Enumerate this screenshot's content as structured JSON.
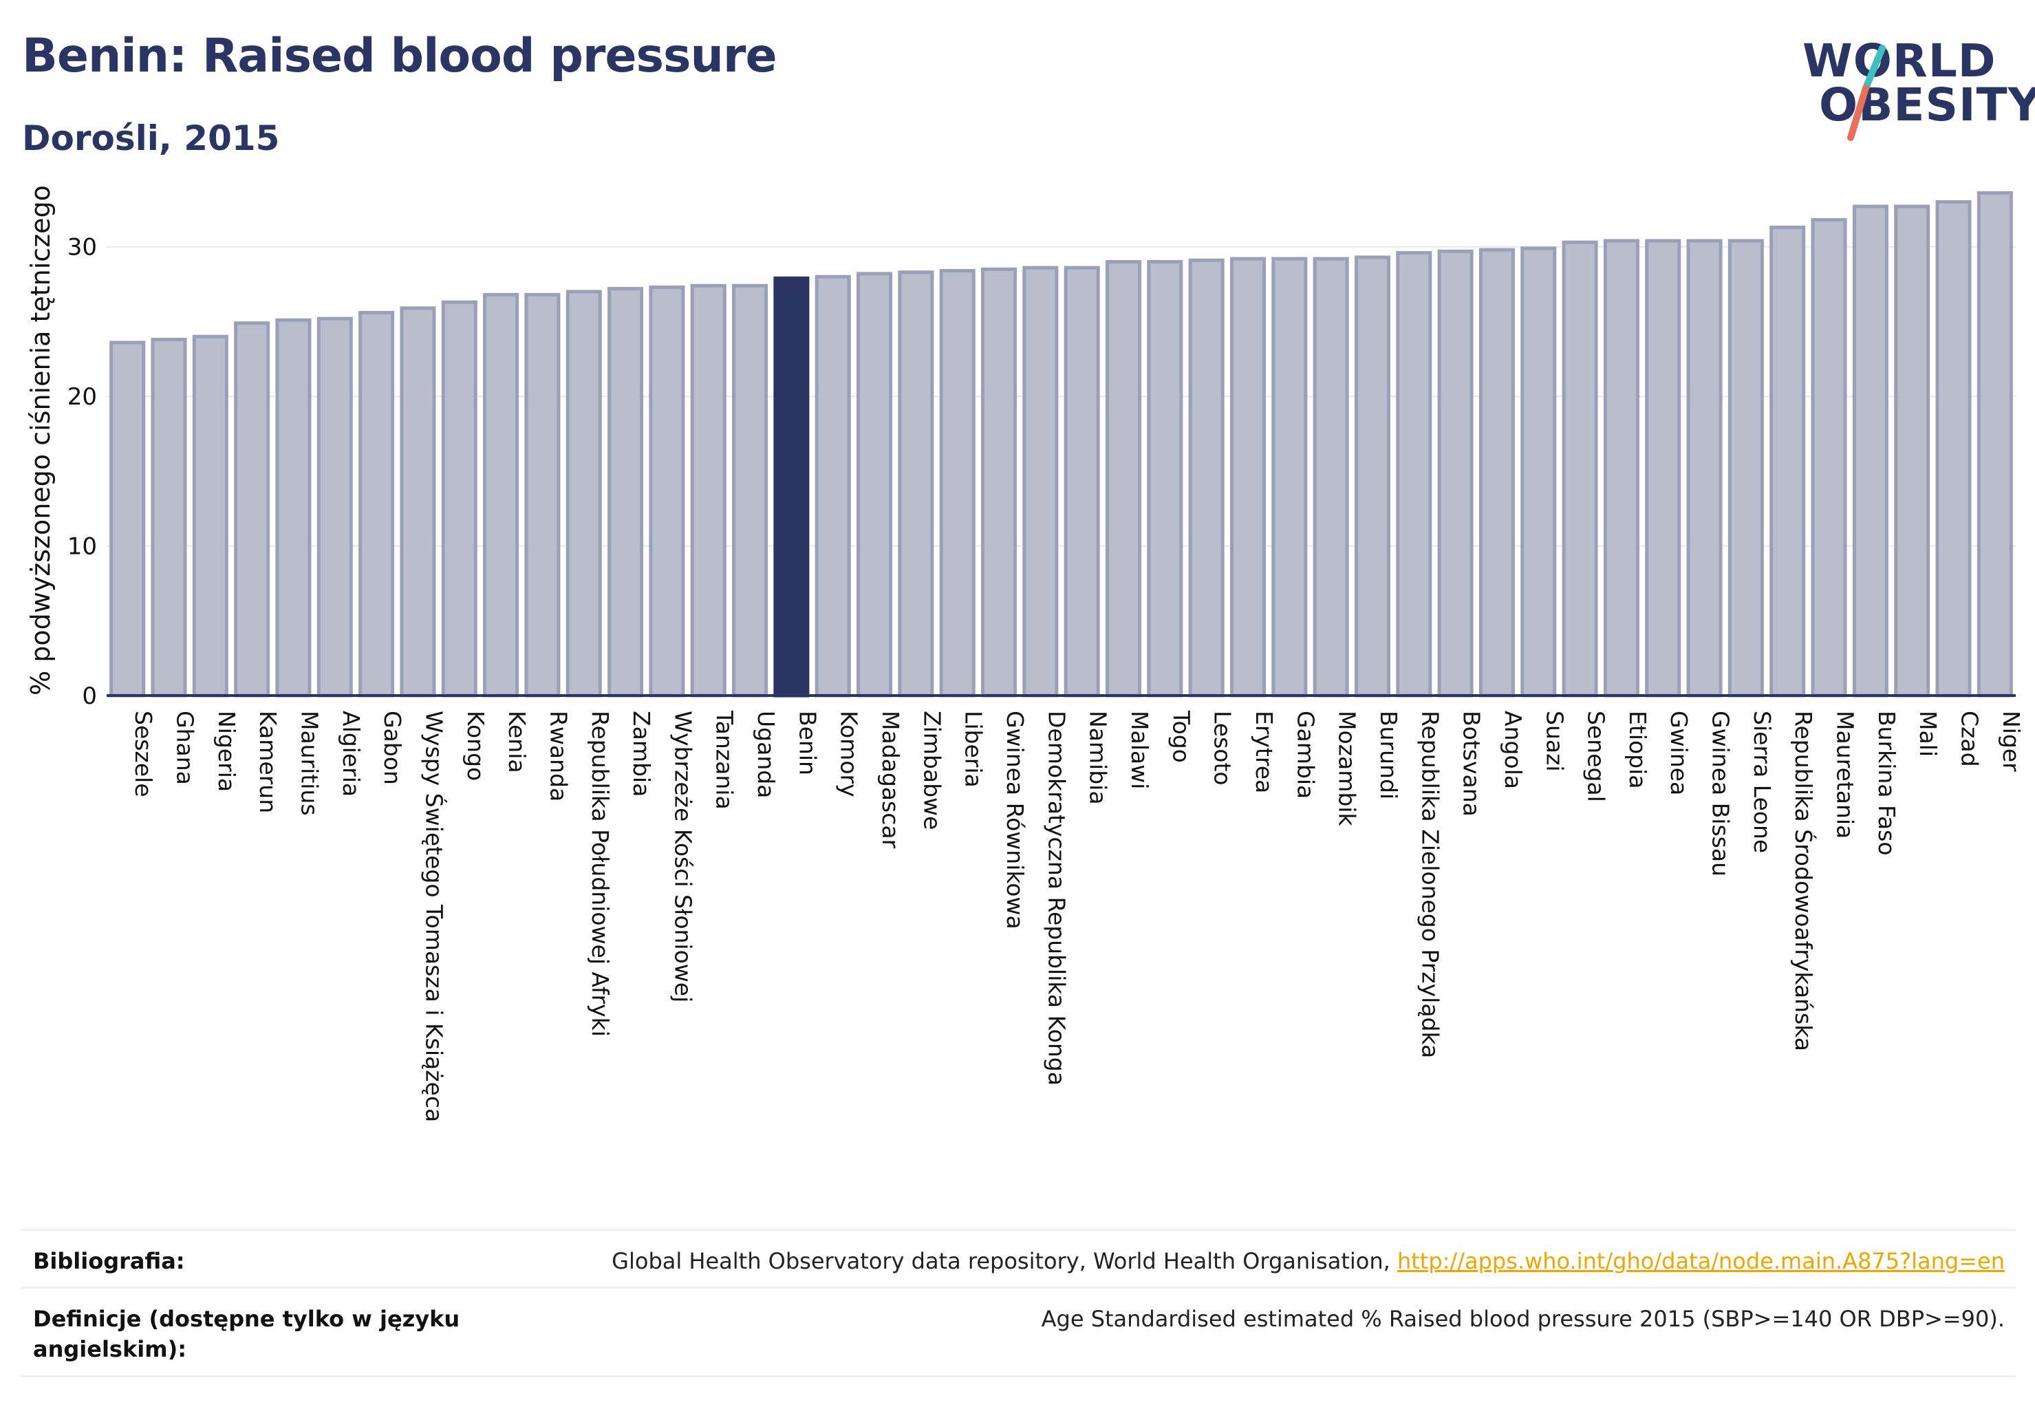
{
  "header": {
    "title": "Benin: Raised blood pressure",
    "subtitle": "Dorośli, 2015"
  },
  "logo": {
    "line1": "WORLD",
    "line2": "OBESITY",
    "accent_colors": [
      "#3fbfbf",
      "#e8705a"
    ]
  },
  "chart_data": {
    "type": "bar",
    "ylabel": "% podwyższonego ciśnienia tętniczego",
    "ylim": [
      0,
      35
    ],
    "yticks": [
      0,
      10,
      20,
      30
    ],
    "grid": true,
    "highlight": "Benin",
    "colors": {
      "bar": "#b9bdcc",
      "bar_border": "#9aa0b8",
      "highlight": "#2b3563"
    },
    "categories": [
      "Seszele",
      "Ghana",
      "Nigeria",
      "Kamerun",
      "Mauritius",
      "Algieria",
      "Gabon",
      "Wyspy Świętego Tomasza i Książęca",
      "Kongo",
      "Kenia",
      "Rwanda",
      "Republika Południowej Afryki",
      "Zambia",
      "Wybrzeże Kości Słoniowej",
      "Tanzania",
      "Uganda",
      "Benin",
      "Komory",
      "Madagascar",
      "Zimbabwe",
      "Liberia",
      "Gwinea Równikowa",
      "Demokratyczna Republika Konga",
      "Namibia",
      "Malawi",
      "Togo",
      "Lesoto",
      "Erytrea",
      "Gambia",
      "Mozambik",
      "Burundi",
      "Republika Zielonego Przylądka",
      "Botsvana",
      "Angola",
      "Suazi",
      "Senegal",
      "Etiopia",
      "Gwinea",
      "Gwinea Bissau",
      "Sierra Leone",
      "Republika Środowoafrykańska",
      "Mauretania",
      "Burkina Faso",
      "Mali",
      "Czad",
      "Niger"
    ],
    "values": [
      23.6,
      23.8,
      24.0,
      24.9,
      25.1,
      25.2,
      25.6,
      25.9,
      26.3,
      26.8,
      26.8,
      27.0,
      27.2,
      27.3,
      27.4,
      27.4,
      27.9,
      28.0,
      28.2,
      28.3,
      28.4,
      28.5,
      28.6,
      28.6,
      29.0,
      29.0,
      29.1,
      29.2,
      29.2,
      29.2,
      29.3,
      29.6,
      29.7,
      29.8,
      29.9,
      30.3,
      30.4,
      30.4,
      30.4,
      30.4,
      31.3,
      31.8,
      32.7,
      32.7,
      33.0,
      33.6
    ]
  },
  "footer": {
    "bibliography_label": "Bibliografia:",
    "bibliography_text": "Global Health Observatory data repository, World Health Organisation, ",
    "bibliography_link": "http://apps.who.int/gho/data/node.main.A875?lang=en",
    "definition_label": "Definicje (dostępne tylko w języku angielskim):",
    "definition_text": "Age Standardised estimated % Raised blood pressure 2015 (SBP>=140 OR DBP>=90)."
  }
}
